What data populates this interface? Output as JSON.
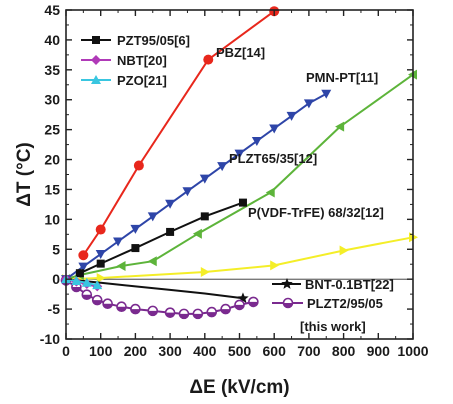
{
  "chart_data": {
    "type": "line",
    "xlabel": "ΔE (kV/cm)",
    "ylabel": "ΔT (°C)",
    "xlim": [
      0,
      1000
    ],
    "ylim": [
      -10,
      45
    ],
    "xticks": [
      0,
      100,
      200,
      300,
      400,
      500,
      600,
      700,
      800,
      900,
      1000
    ],
    "yticks": [
      -10,
      -5,
      0,
      5,
      10,
      15,
      20,
      25,
      30,
      35,
      40,
      45
    ],
    "grid": false,
    "legend_position": "top-left",
    "legend_entries": [
      "PZT95/05[6]",
      "NBT[20]",
      "PZO[21]"
    ],
    "series": [
      {
        "name": "PZT95/05[6]",
        "color": "#111111",
        "marker": "square",
        "label_position": "legend",
        "x": [
          40,
          100,
          200,
          300,
          400,
          510
        ],
        "y": [
          1.0,
          2.6,
          5.2,
          7.9,
          10.5,
          12.8
        ]
      },
      {
        "name": "NBT[20]",
        "color": "#b03ab8",
        "marker": "diamond",
        "label_position": "legend",
        "x": [
          0,
          30,
          60,
          90
        ],
        "y": [
          0,
          -0.4,
          -0.8,
          -1.2
        ]
      },
      {
        "name": "PZO[21]",
        "color": "#39c6e0",
        "marker": "triangle-up",
        "label_position": "legend",
        "x": [
          0,
          30,
          60,
          90
        ],
        "y": [
          0,
          -0.3,
          -0.6,
          -1.0
        ]
      },
      {
        "name": "PBZ[14]",
        "color": "#e8271c",
        "marker": "circle",
        "label_position": "inline",
        "x": [
          50,
          100,
          210,
          410,
          600
        ],
        "y": [
          4,
          8.3,
          19,
          36.7,
          44.8
        ]
      },
      {
        "name": "PMN-PT[11]",
        "color": "#2e45a8",
        "marker": "triangle-down",
        "label_position": "inline",
        "x": [
          0,
          50,
          100,
          150,
          200,
          250,
          300,
          350,
          400,
          450,
          500,
          550,
          600,
          650,
          700,
          750
        ],
        "y": [
          0,
          2.1,
          4.2,
          6.3,
          8.4,
          10.5,
          12.6,
          14.7,
          16.8,
          18.9,
          21,
          23.1,
          25.2,
          27.3,
          29.4,
          31
        ]
      },
      {
        "name": "PLZT65/35[12]",
        "color": "#5db43a",
        "marker": "triangle-left",
        "label_position": "inline",
        "x": [
          0,
          40,
          160,
          250,
          380,
          590,
          790,
          1000
        ],
        "y": [
          0,
          0.7,
          2.2,
          3,
          7.6,
          14.5,
          25.5,
          34.2
        ]
      },
      {
        "name": "P(VDF-TrFE) 68/32[12]",
        "color": "#f4ee28",
        "marker": "triangle-right",
        "label_position": "inline",
        "x": [
          0,
          100,
          400,
          600,
          800,
          1000
        ],
        "y": [
          0,
          0.2,
          1.2,
          2.3,
          4.8,
          7
        ]
      },
      {
        "name": "BNT-0.1BT[22]",
        "color": "#111111",
        "marker": "star",
        "label_position": "inline",
        "x": [
          0,
          100,
          200,
          300,
          400,
          510
        ],
        "y": [
          0,
          -0.6,
          -1.2,
          -1.8,
          -2.4,
          -3.2
        ]
      },
      {
        "name": "PLZT2/95/05",
        "name_line2": "[this work]",
        "color": "#7a2a8f",
        "marker": "half-circle",
        "label_position": "inline",
        "x": [
          0,
          30,
          60,
          90,
          120,
          160,
          200,
          250,
          300,
          340,
          380,
          420,
          460,
          500,
          540
        ],
        "y": [
          -0.2,
          -1.3,
          -2.6,
          -3.5,
          -4.1,
          -4.6,
          -5.0,
          -5.3,
          -5.6,
          -5.8,
          -5.8,
          -5.5,
          -5.0,
          -4.3,
          -3.8
        ]
      }
    ],
    "annotations": [
      {
        "text": "PBZ[14]",
        "series": "PBZ[14]"
      },
      {
        "text": "PMN-PT[11]",
        "series": "PMN-PT[11]"
      },
      {
        "text": "PLZT65/35[12]",
        "series": "PLZT65/35[12]"
      },
      {
        "text": "P(VDF-TrFE) 68/32[12]",
        "series": "P(VDF-TrFE) 68/32[12]"
      },
      {
        "text": "BNT-0.1BT[22]",
        "series": "BNT-0.1BT[22]"
      },
      {
        "text": "PLZT2/95/05",
        "series": "PLZT2/95/05"
      },
      {
        "text": "[this work]",
        "series": "PLZT2/95/05"
      }
    ]
  }
}
